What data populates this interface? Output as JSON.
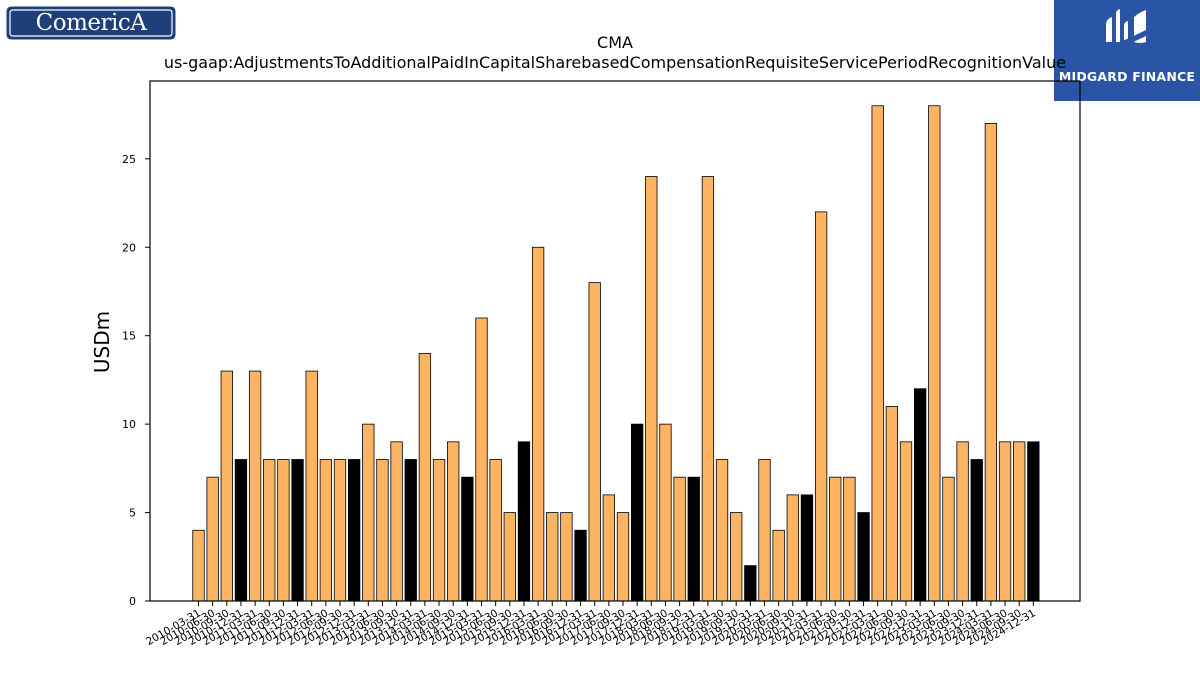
{
  "logos": {
    "left_text": "ComericA",
    "right_text": "MIDGARD FINANCE"
  },
  "chart_data": {
    "type": "bar",
    "title": "CMA",
    "subtitle": "us-gaap:AdjustmentsToAdditionalPaidInCapitalSharebasedCompensationRequisiteServicePeriodRecognitionValue",
    "xlabel": "",
    "ylabel": "USDm",
    "ylim": [
      0,
      29.4
    ],
    "yticks": [
      0,
      5,
      10,
      15,
      20,
      25
    ],
    "grid": false,
    "legend": "none",
    "colors": {
      "regular": "#fdb462",
      "year_end": "#000000",
      "edge": "#000000"
    },
    "categories": [
      "2010-03-31",
      "2010-06-30",
      "2010-09-30",
      "2010-12-31",
      "2011-03-31",
      "2011-06-30",
      "2011-09-30",
      "2011-12-31",
      "2012-03-31",
      "2012-06-30",
      "2012-09-30",
      "2012-12-31",
      "2013-03-31",
      "2013-06-30",
      "2013-09-30",
      "2013-12-31",
      "2014-03-31",
      "2014-06-30",
      "2014-09-30",
      "2014-12-31",
      "2015-03-31",
      "2015-06-30",
      "2015-09-30",
      "2015-12-31",
      "2016-03-31",
      "2016-06-30",
      "2016-09-30",
      "2016-12-31",
      "2017-03-31",
      "2017-06-30",
      "2017-09-30",
      "2017-12-31",
      "2018-03-31",
      "2018-06-30",
      "2018-09-30",
      "2018-12-31",
      "2019-03-31",
      "2019-06-30",
      "2019-09-30",
      "2019-12-31",
      "2020-03-31",
      "2020-06-30",
      "2020-09-30",
      "2020-12-31",
      "2021-03-31",
      "2021-06-30",
      "2021-09-30",
      "2021-12-31",
      "2022-03-31",
      "2022-06-30",
      "2022-09-30",
      "2022-12-31",
      "2023-03-31",
      "2023-06-30",
      "2023-09-30",
      "2023-12-31",
      "2024-03-31",
      "2024-06-30",
      "2024-09-30",
      "2024-12-31"
    ],
    "values": [
      4,
      7,
      13,
      8,
      13,
      8,
      8,
      8,
      13,
      8,
      8,
      8,
      10,
      8,
      9,
      8,
      14,
      8,
      9,
      7,
      16,
      8,
      5,
      9,
      20,
      5,
      5,
      4,
      18,
      6,
      5,
      10,
      24,
      10,
      7,
      7,
      24,
      8,
      5,
      2,
      8,
      4,
      6,
      6,
      22,
      7,
      7,
      5,
      28,
      11,
      9,
      12,
      28,
      7,
      9,
      8,
      27,
      9,
      9,
      9
    ],
    "year_end": [
      false,
      false,
      false,
      true,
      false,
      false,
      false,
      true,
      false,
      false,
      false,
      true,
      false,
      false,
      false,
      true,
      false,
      false,
      false,
      true,
      false,
      false,
      false,
      true,
      false,
      false,
      false,
      true,
      false,
      false,
      false,
      true,
      false,
      false,
      false,
      true,
      false,
      false,
      false,
      true,
      false,
      false,
      false,
      true,
      false,
      false,
      false,
      true,
      false,
      false,
      false,
      true,
      false,
      false,
      false,
      true,
      false,
      false,
      false,
      true
    ]
  }
}
